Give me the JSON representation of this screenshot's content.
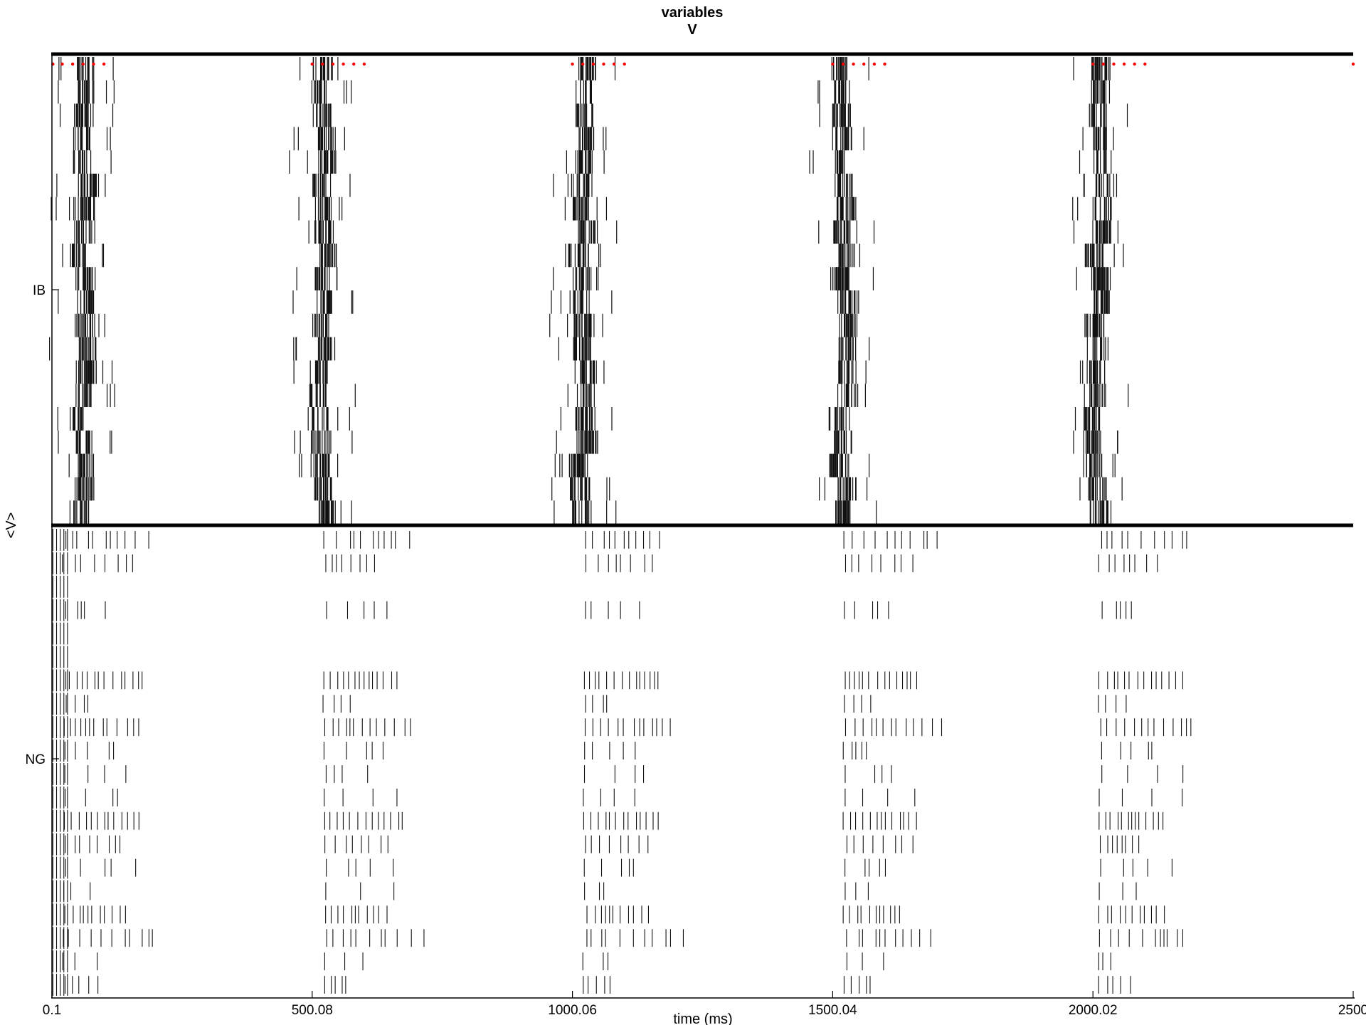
{
  "chart_data": {
    "type": "raster",
    "title_line1": "variables",
    "title_line2": "V",
    "xlabel": "time (ms)",
    "ylabel": "<V>",
    "xlim": [
      0.1,
      2500
    ],
    "xticks": [
      "0.1",
      "500.08",
      "1000.06",
      "1500.04",
      "2000.02",
      "2500"
    ],
    "xtick_values": [
      0.1,
      500.08,
      1000.06,
      1500.04,
      2000.02,
      2500
    ],
    "panels": [
      {
        "name": "IB",
        "tick_label": "IB",
        "rows": 20,
        "burst_times_ms": [
          60,
          520,
          1020,
          1520,
          2010
        ],
        "burst_width_ms": 45,
        "bursts_visible": 5,
        "marker_color": "#ff0000",
        "marker_times_ms": [
          2,
          20,
          40,
          60,
          80,
          100,
          500,
          520,
          540,
          560,
          580,
          600,
          1000,
          1020,
          1040,
          1060,
          1080,
          1100,
          1500,
          1520,
          1540,
          1560,
          1580,
          1600,
          2000,
          2020,
          2040,
          2060,
          2080,
          2100,
          2500
        ]
      },
      {
        "name": "NG",
        "tick_label": "NG",
        "rows": 20,
        "burst_times_ms": [
          20,
          520,
          1020,
          1520,
          2010
        ],
        "spike_color": "#000000"
      }
    ]
  }
}
